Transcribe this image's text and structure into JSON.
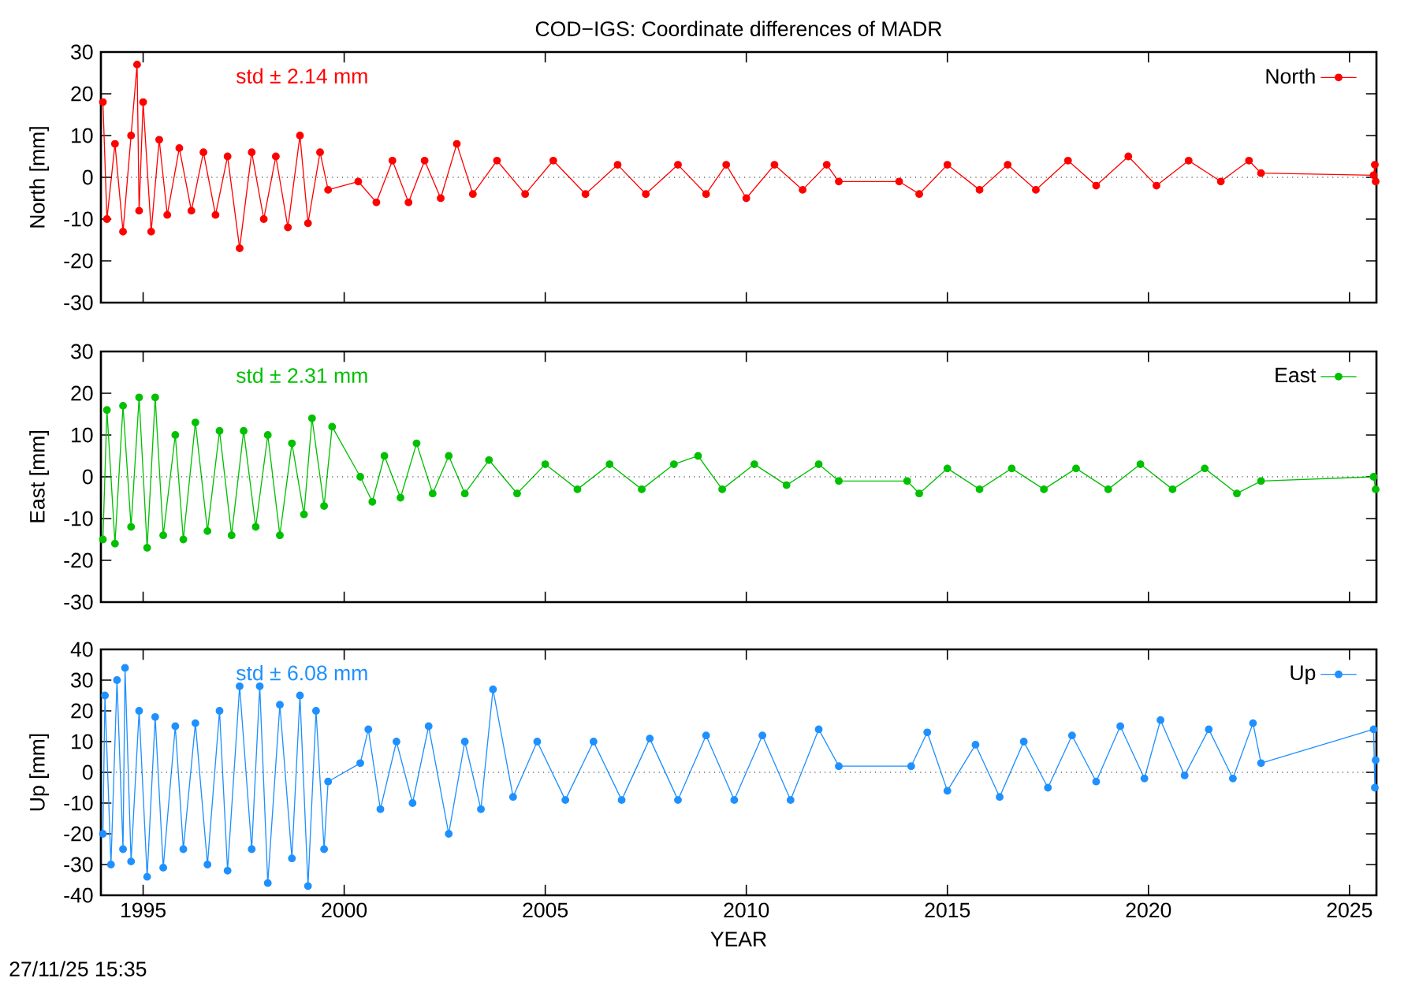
{
  "chart_data": [
    {
      "type": "line",
      "title": "COD−IGS: Coordinate differences of MADR",
      "ylabel": "North [mm]",
      "annotations": [
        "std ± 2.14 mm"
      ],
      "xlim": [
        1993.95,
        2025.67
      ],
      "ylim": [
        -30,
        30
      ],
      "xticks": [
        1995,
        2000,
        2005,
        2010,
        2015,
        2020,
        2025
      ],
      "yticks": [
        -30,
        -20,
        -10,
        0,
        10,
        20,
        30
      ],
      "tick_labels": "y",
      "legend": "top right",
      "marker": "circle",
      "line_style": "solid",
      "ref_lines": [
        {
          "axis": "y",
          "value": 0,
          "color": "#000000",
          "line_style": "dotted"
        }
      ],
      "series": [
        {
          "name": "North",
          "color": "#ff0000",
          "x": [
            1994.0,
            1994.1,
            1994.3,
            1994.5,
            1994.7,
            1994.85,
            1994.9,
            1995.0,
            1995.2,
            1995.4,
            1995.6,
            1995.9,
            1996.2,
            1996.5,
            1996.8,
            1997.1,
            1997.4,
            1997.7,
            1998.0,
            1998.3,
            1998.6,
            1998.9,
            1999.1,
            1999.4,
            1999.6,
            2000.35,
            2000.8,
            2001.2,
            2001.6,
            2002.0,
            2002.4,
            2002.8,
            2003.2,
            2003.8,
            2004.5,
            2005.2,
            2006.0,
            2006.8,
            2007.5,
            2008.3,
            2009.0,
            2009.5,
            2010.0,
            2010.7,
            2011.4,
            2012.0,
            2012.3,
            2013.8,
            2014.3,
            2015.0,
            2015.8,
            2016.5,
            2017.2,
            2018.0,
            2018.7,
            2019.5,
            2020.2,
            2021.0,
            2021.8,
            2022.5,
            2022.8,
            2025.6,
            2025.63,
            2025.65
          ],
          "values": [
            18,
            -10,
            8,
            -13,
            10,
            27,
            -8,
            18,
            -13,
            9,
            -9,
            7,
            -8,
            6,
            -9,
            5,
            -17,
            6,
            -10,
            5,
            -12,
            10,
            -11,
            6,
            -3,
            -1,
            -6,
            4,
            -6,
            4,
            -5,
            8,
            -4,
            4,
            -4,
            4,
            -4,
            3,
            -4,
            3,
            -4,
            3,
            -5,
            3,
            -3,
            3,
            -1,
            -1,
            -4,
            3,
            -3,
            3,
            -3,
            4,
            -2,
            5,
            -2,
            4,
            -1,
            4,
            1,
            0.5,
            3,
            -1
          ]
        }
      ]
    },
    {
      "type": "line",
      "ylabel": "East [mm]",
      "annotations": [
        "std ± 2.31 mm"
      ],
      "xlim": [
        1993.95,
        2025.67
      ],
      "ylim": [
        -30,
        30
      ],
      "xticks": [
        1995,
        2000,
        2005,
        2010,
        2015,
        2020,
        2025
      ],
      "yticks": [
        -30,
        -20,
        -10,
        0,
        10,
        20,
        30
      ],
      "tick_labels": "y",
      "legend": "top right",
      "marker": "circle",
      "line_style": "solid",
      "ref_lines": [
        {
          "axis": "y",
          "value": 0,
          "color": "#000000",
          "line_style": "dotted"
        }
      ],
      "series": [
        {
          "name": "East",
          "color": "#00c000",
          "x": [
            1994.0,
            1994.1,
            1994.3,
            1994.5,
            1994.7,
            1994.9,
            1995.1,
            1995.3,
            1995.5,
            1995.8,
            1996.0,
            1996.3,
            1996.6,
            1996.9,
            1997.2,
            1997.5,
            1997.8,
            1998.1,
            1998.4,
            1998.7,
            1999.0,
            1999.2,
            1999.5,
            1999.7,
            2000.4,
            2000.7,
            2001.0,
            2001.4,
            2001.8,
            2002.2,
            2002.6,
            2003.0,
            2003.6,
            2004.3,
            2005.0,
            2005.8,
            2006.6,
            2007.4,
            2008.2,
            2008.8,
            2009.4,
            2010.2,
            2011.0,
            2011.8,
            2012.3,
            2014.0,
            2014.3,
            2015.0,
            2015.8,
            2016.6,
            2017.4,
            2018.2,
            2019.0,
            2019.8,
            2020.6,
            2021.4,
            2022.2,
            2022.8,
            2025.6,
            2025.65
          ],
          "values": [
            -15,
            16,
            -16,
            17,
            -12,
            19,
            -17,
            19,
            -14,
            10,
            -15,
            13,
            -13,
            11,
            -14,
            11,
            -12,
            10,
            -14,
            8,
            -9,
            14,
            -7,
            12,
            0,
            -6,
            5,
            -5,
            8,
            -4,
            5,
            -4,
            4,
            -4,
            3,
            -3,
            3,
            -3,
            3,
            5,
            -3,
            3,
            -2,
            3,
            -1,
            -1,
            -4,
            2,
            -3,
            2,
            -3,
            2,
            -3,
            3,
            -3,
            2,
            -4,
            -1,
            0,
            -3
          ]
        }
      ]
    },
    {
      "type": "line",
      "xlabel": "YEAR",
      "ylabel": "Up [mm]",
      "annotations": [
        "std ± 6.08 mm",
        "27/11/25 15:35"
      ],
      "xlim": [
        1993.95,
        2025.67
      ],
      "ylim": [
        -40,
        40
      ],
      "xticks": [
        1995,
        2000,
        2005,
        2010,
        2015,
        2020,
        2025
      ],
      "yticks": [
        -40,
        -30,
        -20,
        -10,
        0,
        10,
        20,
        30,
        40
      ],
      "legend": "top right",
      "marker": "circle",
      "line_style": "solid",
      "ref_lines": [
        {
          "axis": "y",
          "value": 0,
          "color": "#000000",
          "line_style": "dotted"
        }
      ],
      "series": [
        {
          "name": "Up",
          "color": "#1e90ff",
          "x": [
            1994.0,
            1994.05,
            1994.2,
            1994.35,
            1994.5,
            1994.55,
            1994.7,
            1994.9,
            1995.1,
            1995.3,
            1995.5,
            1995.8,
            1996.0,
            1996.3,
            1996.6,
            1996.9,
            1997.1,
            1997.4,
            1997.7,
            1997.9,
            1998.1,
            1998.4,
            1998.7,
            1998.9,
            1999.1,
            1999.3,
            1999.5,
            1999.6,
            2000.4,
            2000.6,
            2000.9,
            2001.3,
            2001.7,
            2002.1,
            2002.6,
            2003.0,
            2003.4,
            2003.7,
            2004.2,
            2004.8,
            2005.5,
            2006.2,
            2006.9,
            2007.6,
            2008.3,
            2009.0,
            2009.7,
            2010.4,
            2011.1,
            2011.8,
            2012.3,
            2014.1,
            2014.5,
            2015.0,
            2015.7,
            2016.3,
            2016.9,
            2017.5,
            2018.1,
            2018.7,
            2019.3,
            2019.9,
            2020.3,
            2020.9,
            2021.5,
            2022.1,
            2022.6,
            2022.8,
            2025.6,
            2025.63,
            2025.65
          ],
          "values": [
            -20,
            25,
            -30,
            30,
            -25,
            34,
            -29,
            20,
            -34,
            18,
            -31,
            15,
            -25,
            16,
            -30,
            20,
            -32,
            28,
            -25,
            28,
            -36,
            22,
            -28,
            25,
            -37,
            20,
            -25,
            -3,
            3,
            14,
            -12,
            10,
            -10,
            15,
            -20,
            10,
            -12,
            27,
            -8,
            10,
            -9,
            10,
            -9,
            11,
            -9,
            12,
            -9,
            12,
            -9,
            14,
            2,
            2,
            13,
            -6,
            9,
            -8,
            10,
            -5,
            12,
            -3,
            15,
            -2,
            17,
            -1,
            14,
            -2,
            16,
            3,
            14,
            -5,
            4
          ]
        }
      ]
    }
  ]
}
